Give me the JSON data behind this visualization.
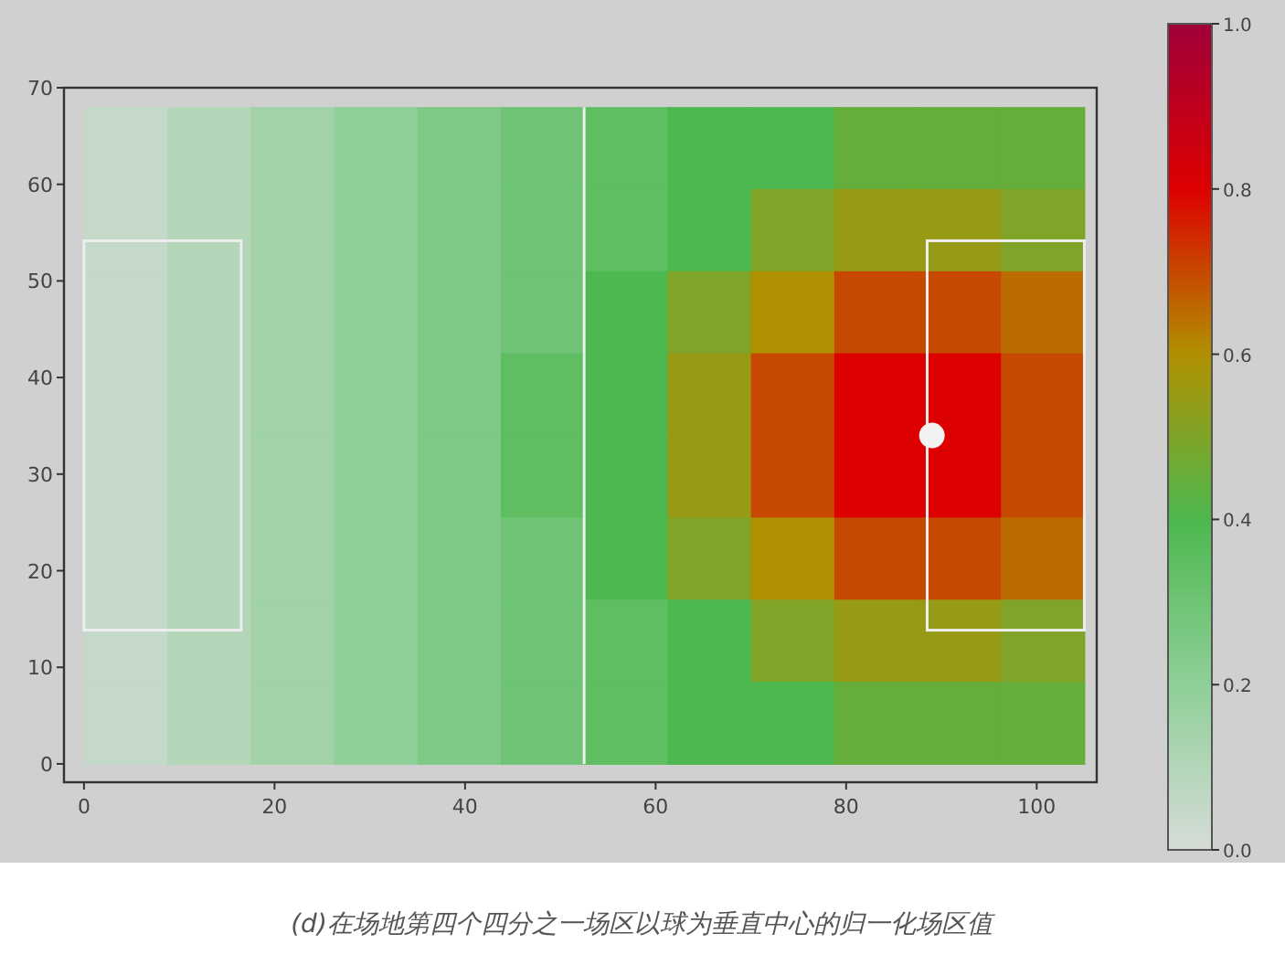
{
  "chart_data": {
    "type": "heatmap",
    "annotations": [
      "(d)在场地第四个四分之一场区以球为垂直中心的归一化场区值"
    ],
    "cells": [
      [
        0.05,
        0.1,
        0.15,
        0.2,
        0.25,
        0.3,
        0.35,
        0.4,
        0.4,
        0.45,
        0.45,
        0.45
      ],
      [
        0.05,
        0.1,
        0.15,
        0.2,
        0.25,
        0.3,
        0.35,
        0.4,
        0.5,
        0.55,
        0.55,
        0.5
      ],
      [
        0.05,
        0.1,
        0.15,
        0.2,
        0.25,
        0.3,
        0.4,
        0.5,
        0.6,
        0.7,
        0.7,
        0.65
      ],
      [
        0.05,
        0.1,
        0.15,
        0.2,
        0.25,
        0.35,
        0.4,
        0.55,
        0.7,
        0.8,
        0.8,
        0.7
      ],
      [
        0.05,
        0.1,
        0.15,
        0.2,
        0.25,
        0.35,
        0.4,
        0.55,
        0.7,
        0.8,
        0.8,
        0.7
      ],
      [
        0.05,
        0.1,
        0.15,
        0.2,
        0.25,
        0.3,
        0.4,
        0.5,
        0.6,
        0.7,
        0.7,
        0.65
      ],
      [
        0.05,
        0.1,
        0.15,
        0.2,
        0.25,
        0.3,
        0.35,
        0.4,
        0.5,
        0.55,
        0.55,
        0.5
      ],
      [
        0.05,
        0.1,
        0.15,
        0.2,
        0.25,
        0.3,
        0.35,
        0.4,
        0.4,
        0.45,
        0.45,
        0.45
      ]
    ],
    "colors": [
      "#d6dcd8",
      "#8fcf98",
      "#4db84f",
      "#b09000",
      "#dd0000",
      "#a0003a"
    ],
    "ref_lines": [
      {
        "axis": "x",
        "value": 52.5,
        "color": "#eeeeee"
      }
    ],
    "clim": [
      0,
      1
    ],
    "cticks": [
      {
        "value": 0,
        "label": "0.0"
      },
      {
        "value": 0.2,
        "label": "0.2"
      },
      {
        "value": 0.4,
        "label": "0.4"
      },
      {
        "value": 0.6,
        "label": "0.6"
      },
      {
        "value": 0.8,
        "label": "0.8"
      },
      {
        "value": 1,
        "label": "1.0"
      }
    ],
    "xlim": [
      -2.1,
      106.3
    ],
    "ylim": [
      -1.9,
      70
    ],
    "xticks": [
      0,
      20,
      40,
      60,
      80,
      100
    ],
    "yticks": [
      0,
      10,
      20,
      30,
      40,
      50,
      60,
      70
    ]
  }
}
